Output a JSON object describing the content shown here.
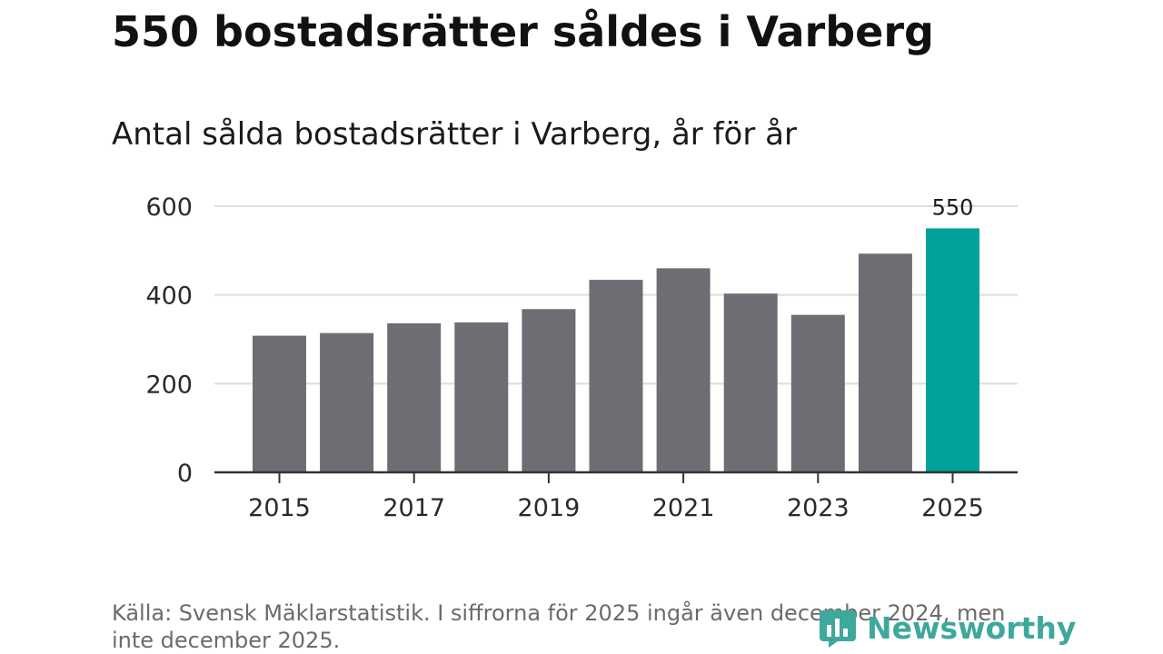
{
  "header": {
    "title": "550 bostadsrätter såldes i Varberg",
    "subtitle": "Antal sålda bostadsrätter i Varberg, år för år"
  },
  "footer": {
    "source": "Källa: Svensk Mäklarstatistik. I siffrorna för 2025 ingår även december 2024, men inte december 2025.",
    "logo_text": "Newsworthy"
  },
  "colors": {
    "bar": "#6e6d73",
    "highlight": "#00a19a",
    "grid": "#dddddd",
    "axis": "#333333",
    "logo": "#3fa89c"
  },
  "chart_data": {
    "type": "bar",
    "title": "Antal sålda bostadsrätter i Varberg, år för år",
    "xlabel": "",
    "ylabel": "",
    "categories": [
      "2015",
      "2016",
      "2017",
      "2018",
      "2019",
      "2020",
      "2021",
      "2022",
      "2023",
      "2024",
      "2025"
    ],
    "values": [
      308,
      314,
      336,
      338,
      368,
      434,
      460,
      403,
      355,
      493,
      550
    ],
    "highlight_index": 10,
    "x_tick_labels": [
      "2015",
      "2017",
      "2019",
      "2021",
      "2023",
      "2025"
    ],
    "y_ticks": [
      0,
      200,
      400,
      600
    ],
    "y_tick_labels": [
      "0",
      "200",
      "400",
      "600"
    ],
    "ylim": [
      0,
      600
    ],
    "data_labels": [
      {
        "category": "2025",
        "text": "550"
      }
    ],
    "grid": true,
    "legend": "none"
  }
}
